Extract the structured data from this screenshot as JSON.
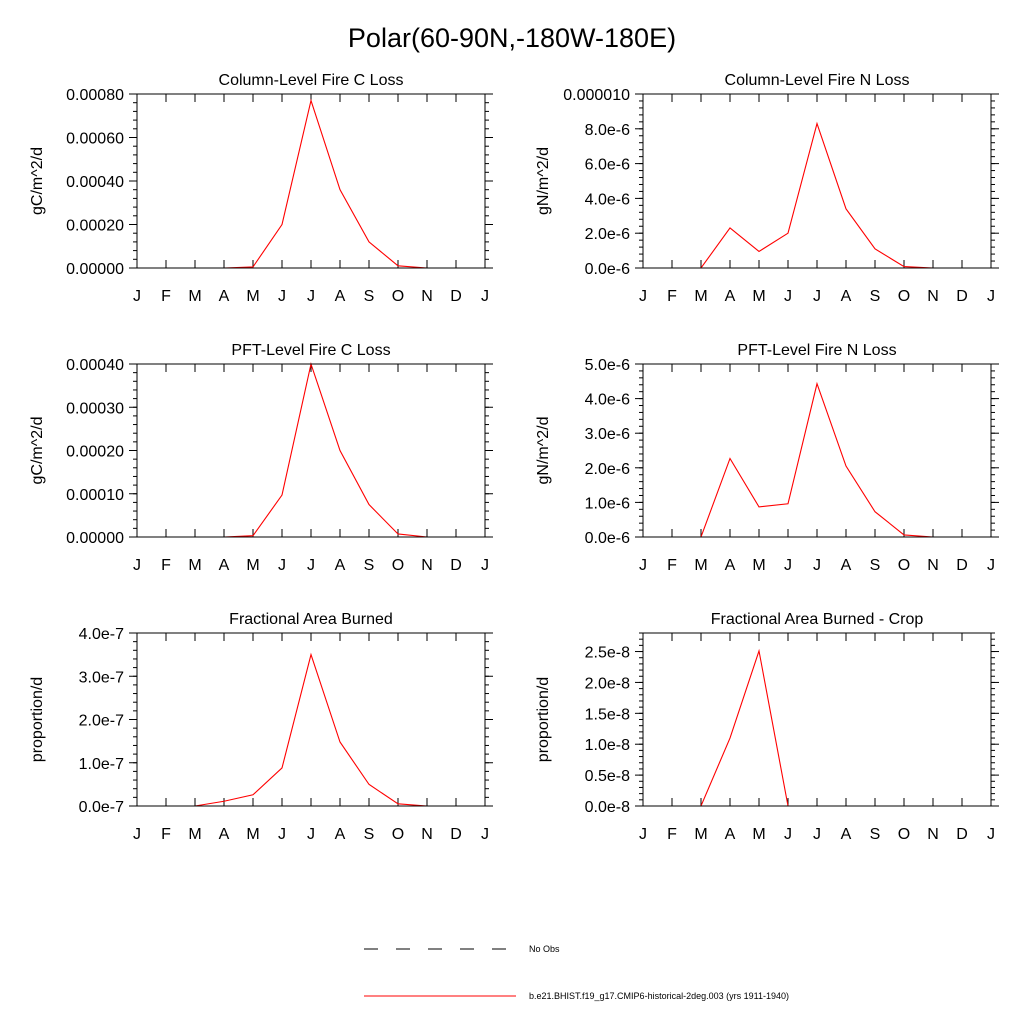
{
  "figure": {
    "title": "Polar(60-90N,-180W-180E)"
  },
  "legend": {
    "placement": "bottom-center",
    "entries": [
      {
        "label": "No Obs",
        "style": "dashed",
        "color": "#000000"
      },
      {
        "label": "b.e21.BHIST.f19_g17.CMIP6-historical-2deg.003 (yrs 1911-1940)",
        "style": "solid",
        "color": "#ff0000"
      }
    ]
  },
  "chart_data": [
    {
      "type": "line",
      "title": "Column-Level Fire C Loss",
      "ylabel": "gC/m^2/d",
      "categories": [
        "J",
        "F",
        "M",
        "A",
        "M",
        "J",
        "J",
        "A",
        "S",
        "O",
        "N",
        "D",
        "J"
      ],
      "ylim": [
        0,
        0.0008
      ],
      "yticks": [
        0,
        0.0002,
        0.0004,
        0.0006,
        0.0008
      ],
      "ytick_labels": [
        "0.00000",
        "0.00020",
        "0.00040",
        "0.00060",
        "0.00080"
      ],
      "series": [
        {
          "color": "#ff0000",
          "values": [
            0,
            0,
            0,
            0,
            5e-06,
            0.0002,
            0.00077,
            0.00036,
            0.00012,
            1e-05,
            0,
            0,
            0
          ]
        }
      ]
    },
    {
      "type": "line",
      "title": "Column-Level Fire N Loss",
      "ylabel": "gN/m^2/d",
      "categories": [
        "J",
        "F",
        "M",
        "A",
        "M",
        "J",
        "J",
        "A",
        "S",
        "O",
        "N",
        "D",
        "J"
      ],
      "ylim": [
        0,
        1e-05
      ],
      "yticks": [
        0,
        2e-06,
        4e-06,
        6e-06,
        8e-06,
        1e-05
      ],
      "ytick_labels": [
        "0.0e-6",
        "2.0e-6",
        "4.0e-6",
        "6.0e-6",
        "8.0e-6",
        "0.000010"
      ],
      "series": [
        {
          "color": "#ff0000",
          "values": [
            0,
            0,
            0,
            2.3e-06,
            9.5e-07,
            2e-06,
            8.3e-06,
            3.4e-06,
            1.1e-06,
            8e-08,
            0,
            0,
            0
          ]
        }
      ]
    },
    {
      "type": "line",
      "title": "PFT-Level Fire C Loss",
      "ylabel": "gC/m^2/d",
      "categories": [
        "J",
        "F",
        "M",
        "A",
        "M",
        "J",
        "J",
        "A",
        "S",
        "O",
        "N",
        "D",
        "J"
      ],
      "ylim": [
        0,
        0.0004
      ],
      "yticks": [
        0,
        0.0001,
        0.0002,
        0.0003,
        0.0004
      ],
      "ytick_labels": [
        "0.00000",
        "0.00010",
        "0.00020",
        "0.00030",
        "0.00040"
      ],
      "series": [
        {
          "color": "#ff0000",
          "values": [
            0,
            0,
            0,
            0,
            3e-06,
            9.7e-05,
            0.0004,
            0.0002,
            7.5e-05,
            7e-06,
            0,
            0,
            0
          ]
        }
      ]
    },
    {
      "type": "line",
      "title": "PFT-Level Fire N Loss",
      "ylabel": "gN/m^2/d",
      "categories": [
        "J",
        "F",
        "M",
        "A",
        "M",
        "J",
        "J",
        "A",
        "S",
        "O",
        "N",
        "D",
        "J"
      ],
      "ylim": [
        0,
        5e-06
      ],
      "yticks": [
        0,
        1e-06,
        2e-06,
        3e-06,
        4e-06,
        5e-06
      ],
      "ytick_labels": [
        "0.0e-6",
        "1.0e-6",
        "2.0e-6",
        "3.0e-6",
        "4.0e-6",
        "5.0e-6"
      ],
      "series": [
        {
          "color": "#ff0000",
          "values": [
            0,
            0,
            0,
            2.27e-06,
            8.7e-07,
            9.6e-07,
            4.43e-06,
            2.05e-06,
            7.3e-07,
            6e-08,
            0,
            0,
            0
          ]
        }
      ]
    },
    {
      "type": "line",
      "title": "Fractional Area Burned",
      "ylabel": "proportion/d",
      "categories": [
        "J",
        "F",
        "M",
        "A",
        "M",
        "J",
        "J",
        "A",
        "S",
        "O",
        "N",
        "D",
        "J"
      ],
      "ylim": [
        0,
        4e-07
      ],
      "yticks": [
        0,
        1e-07,
        2e-07,
        3e-07,
        4e-07
      ],
      "ytick_labels": [
        "0.0e-7",
        "1.0e-7",
        "2.0e-7",
        "3.0e-7",
        "4.0e-7"
      ],
      "series": [
        {
          "color": "#ff0000",
          "values": [
            0,
            0,
            0,
            1.1e-08,
            2.6e-08,
            8.8e-08,
            3.5e-07,
            1.48e-07,
            5e-08,
            5e-09,
            0,
            0,
            0
          ]
        }
      ]
    },
    {
      "type": "line",
      "title": "Fractional Area Burned - Crop",
      "ylabel": "proportion/d",
      "categories": [
        "J",
        "F",
        "M",
        "A",
        "M",
        "J",
        "J",
        "A",
        "S",
        "O",
        "N",
        "D",
        "J"
      ],
      "ylim": [
        0,
        2.8e-08
      ],
      "yticks": [
        0,
        5e-09,
        1e-08,
        1.5e-08,
        2e-08,
        2.5e-08
      ],
      "ytick_labels": [
        "0.0e-8",
        "0.5e-8",
        "1.0e-8",
        "1.5e-8",
        "2.0e-8",
        "2.5e-8"
      ],
      "series": [
        {
          "color": "#ff0000",
          "values": [
            0,
            0,
            0,
            1.1e-08,
            2.51e-08,
            0,
            0,
            0,
            0,
            0,
            0,
            0,
            0
          ]
        }
      ]
    }
  ]
}
